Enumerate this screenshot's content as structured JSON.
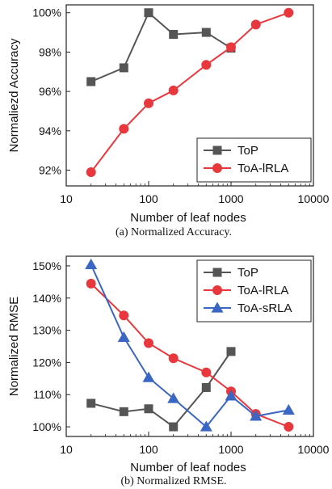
{
  "chart_data": [
    {
      "type": "line",
      "xscale": "log",
      "xlabel": "Number of leaf nodes",
      "ylabel": "Normaliezd Accuracy",
      "xlim": [
        10,
        10000
      ],
      "ylim": [
        91.2,
        100.4
      ],
      "xticks": [
        10,
        100,
        1000,
        10000
      ],
      "xtick_labels": [
        "10",
        "100",
        "1000",
        "10000"
      ],
      "yticks": [
        92,
        94,
        96,
        98,
        100
      ],
      "ytick_labels": [
        "92%",
        "94%",
        "96%",
        "98%",
        "100%"
      ],
      "grid": false,
      "legend_position": "bottom-right",
      "caption": "(a)  Normalized Accuracy.",
      "series": [
        {
          "name": "ToP",
          "color": "#555555",
          "marker": "square",
          "x": [
            20,
            50,
            100,
            200,
            500,
            1000
          ],
          "y": [
            96.5,
            97.2,
            100.0,
            98.9,
            99.0,
            98.2
          ]
        },
        {
          "name": "ToA-lRLA",
          "color": "#e8383d",
          "marker": "circle",
          "x": [
            20,
            50,
            100,
            200,
            500,
            1000,
            2000,
            5000
          ],
          "y": [
            91.9,
            94.1,
            95.4,
            96.05,
            97.35,
            98.25,
            99.4,
            100.0
          ]
        }
      ]
    },
    {
      "type": "line",
      "xscale": "log",
      "xlabel": "Number of leaf nodes",
      "ylabel": "Normalized RMSE",
      "xlim": [
        10,
        10000
      ],
      "ylim": [
        97,
        153
      ],
      "xticks": [
        10,
        100,
        1000,
        10000
      ],
      "xtick_labels": [
        "10",
        "100",
        "1000",
        "10000"
      ],
      "yticks": [
        100,
        110,
        120,
        130,
        140,
        150
      ],
      "ytick_labels": [
        "100%",
        "110%",
        "120%",
        "130%",
        "140%",
        "150%"
      ],
      "grid": false,
      "legend_position": "top-right",
      "caption": "(b)  Normalized RMSE.",
      "series": [
        {
          "name": "ToP",
          "color": "#555555",
          "marker": "square",
          "x": [
            20,
            50,
            100,
            200,
            500,
            1000
          ],
          "y": [
            107.3,
            104.7,
            105.6,
            100.0,
            112.2,
            123.4
          ]
        },
        {
          "name": "ToA-lRLA",
          "color": "#e8383d",
          "marker": "circle",
          "x": [
            20,
            50,
            100,
            200,
            500,
            1000,
            2000,
            5000
          ],
          "y": [
            144.5,
            134.6,
            126.0,
            121.3,
            116.9,
            111.0,
            104.0,
            100.0
          ]
        },
        {
          "name": "ToA-sRLA",
          "color": "#3a66c4",
          "marker": "triangle",
          "x": [
            20,
            50,
            100,
            200,
            500,
            1000,
            2000,
            5000
          ],
          "y": [
            150.4,
            127.8,
            115.3,
            108.8,
            100.0,
            109.6,
            103.3,
            105.2
          ]
        }
      ]
    }
  ]
}
